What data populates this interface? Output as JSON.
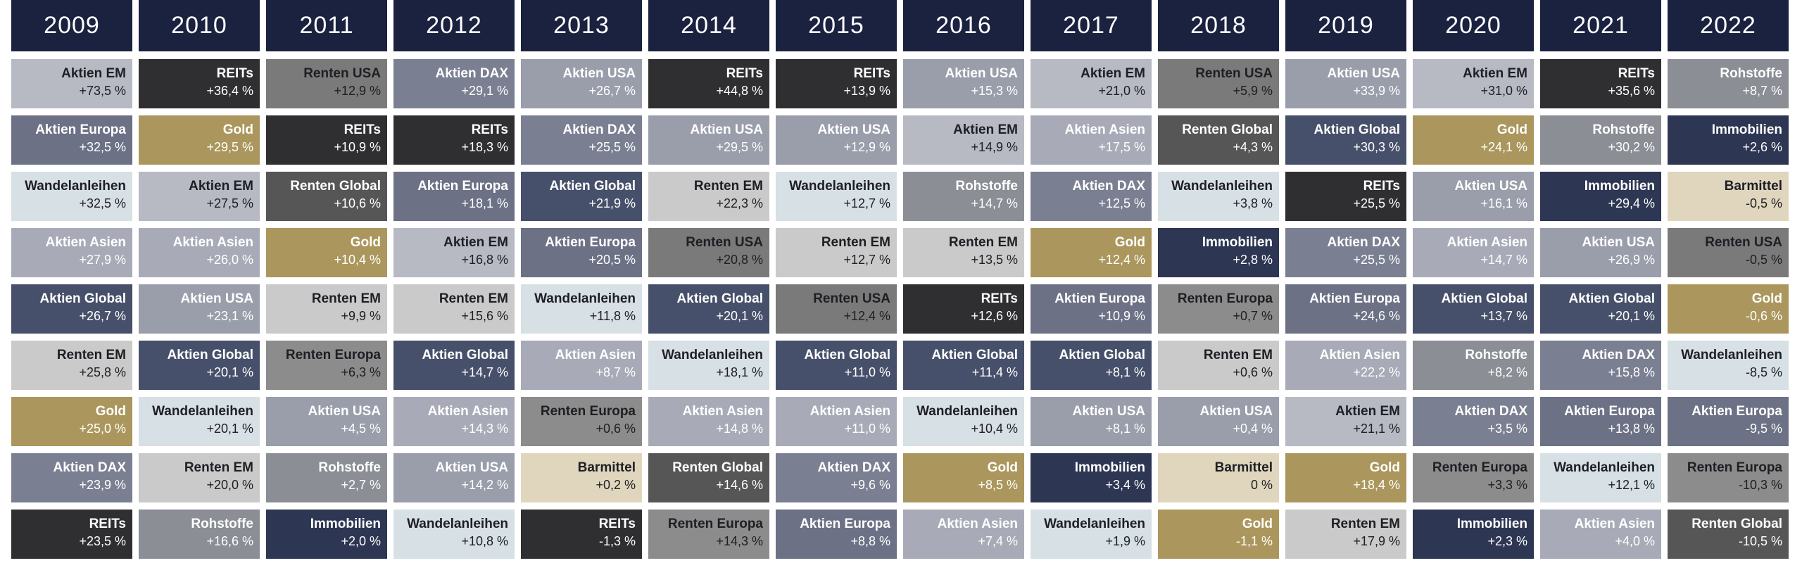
{
  "chart_data": {
    "type": "table",
    "years": [
      "2009",
      "2010",
      "2011",
      "2012",
      "2013",
      "2014",
      "2015",
      "2016",
      "2017",
      "2018",
      "2019",
      "2020",
      "2021",
      "2022"
    ],
    "asset_colors": {
      "Aktien EM": {
        "bg": "#b7b9c3",
        "fg": "#1e1e24"
      },
      "Aktien Europa": {
        "bg": "#6c7185",
        "fg": "#ffffff"
      },
      "Aktien USA": {
        "bg": "#9a9eab",
        "fg": "#ffffff"
      },
      "Aktien DAX": {
        "bg": "#7b7f92",
        "fg": "#ffffff"
      },
      "Aktien Asien": {
        "bg": "#a8abb7",
        "fg": "#ffffff"
      },
      "Aktien Global": {
        "bg": "#47506a",
        "fg": "#ffffff"
      },
      "Wandelanleihen": {
        "bg": "#d7e0e4",
        "fg": "#1e1e24"
      },
      "Renten EM": {
        "bg": "#cacaca",
        "fg": "#1e1e24"
      },
      "Renten USA": {
        "bg": "#7a7a7a",
        "fg": "#1e1e24"
      },
      "Renten Global": {
        "bg": "#565656",
        "fg": "#ffffff"
      },
      "Renten Europa": {
        "bg": "#8c8c8c",
        "fg": "#1e1e24"
      },
      "REITs": {
        "bg": "#2f2f31",
        "fg": "#ffffff"
      },
      "Gold": {
        "bg": "#ab975d",
        "fg": "#ffffff"
      },
      "Rohstoffe": {
        "bg": "#8b8e95",
        "fg": "#ffffff"
      },
      "Immobilien": {
        "bg": "#2d3652",
        "fg": "#ffffff"
      },
      "Barmittel": {
        "bg": "#e0d6be",
        "fg": "#1e1e24"
      }
    },
    "columns": [
      [
        [
          "Aktien EM",
          "+73,5 %"
        ],
        [
          "Aktien Europa",
          "+32,5 %"
        ],
        [
          "Wandelanleihen",
          "+32,5 %"
        ],
        [
          "Aktien Asien",
          "+27,9 %"
        ],
        [
          "Aktien Global",
          "+26,7 %"
        ],
        [
          "Renten EM",
          "+25,8 %"
        ],
        [
          "Gold",
          "+25,0 %"
        ],
        [
          "Aktien DAX",
          "+23,9 %"
        ],
        [
          "REITs",
          "+23,5 %"
        ]
      ],
      [
        [
          "REITs",
          "+36,4 %"
        ],
        [
          "Gold",
          "+29,5 %"
        ],
        [
          "Aktien EM",
          "+27,5 %"
        ],
        [
          "Aktien Asien",
          "+26,0 %"
        ],
        [
          "Aktien USA",
          "+23,1 %"
        ],
        [
          "Aktien Global",
          "+20,1 %"
        ],
        [
          "Wandelanleihen",
          "+20,1 %"
        ],
        [
          "Renten EM",
          "+20,0 %"
        ],
        [
          "Rohstoffe",
          "+16,6 %"
        ]
      ],
      [
        [
          "Renten USA",
          "+12,9 %"
        ],
        [
          "REITs",
          "+10,9 %"
        ],
        [
          "Renten Global",
          "+10,6 %"
        ],
        [
          "Gold",
          "+10,4 %"
        ],
        [
          "Renten EM",
          "+9,9 %"
        ],
        [
          "Renten Europa",
          "+6,3 %"
        ],
        [
          "Aktien USA",
          "+4,5 %"
        ],
        [
          "Rohstoffe",
          "+2,7 %"
        ],
        [
          "Immobilien",
          "+2,0 %"
        ]
      ],
      [
        [
          "Aktien DAX",
          "+29,1 %"
        ],
        [
          "REITs",
          "+18,3 %"
        ],
        [
          "Aktien Europa",
          "+18,1 %"
        ],
        [
          "Aktien EM",
          "+16,8 %"
        ],
        [
          "Renten EM",
          "+15,6 %"
        ],
        [
          "Aktien Global",
          "+14,7 %"
        ],
        [
          "Aktien Asien",
          "+14,3 %"
        ],
        [
          "Aktien USA",
          "+14,2 %"
        ],
        [
          "Wandelanleihen",
          "+10,8 %"
        ]
      ],
      [
        [
          "Aktien USA",
          "+26,7 %"
        ],
        [
          "Aktien DAX",
          "+25,5 %"
        ],
        [
          "Aktien Global",
          "+21,9 %"
        ],
        [
          "Aktien Europa",
          "+20,5 %"
        ],
        [
          "Wandelanleihen",
          "+11,8 %"
        ],
        [
          "Aktien Asien",
          "+8,7 %"
        ],
        [
          "Renten Europa",
          "+0,6 %"
        ],
        [
          "Barmittel",
          "+0,2 %"
        ],
        [
          "REITs",
          "-1,3 %"
        ]
      ],
      [
        [
          "REITs",
          "+44,8 %"
        ],
        [
          "Aktien USA",
          "+29,5 %"
        ],
        [
          "Renten EM",
          "+22,3 %"
        ],
        [
          "Renten USA",
          "+20,8 %"
        ],
        [
          "Aktien Global",
          "+20,1 %"
        ],
        [
          "Wandelanleihen",
          "+18,1 %"
        ],
        [
          "Aktien Asien",
          "+14,8 %"
        ],
        [
          "Renten Global",
          "+14,6 %"
        ],
        [
          "Renten Europa",
          "+14,3 %"
        ]
      ],
      [
        [
          "REITs",
          "+13,9 %"
        ],
        [
          "Aktien USA",
          "+12,9 %"
        ],
        [
          "Wandelanleihen",
          "+12,7 %"
        ],
        [
          "Renten EM",
          "+12,7 %"
        ],
        [
          "Renten USA",
          "+12,4 %"
        ],
        [
          "Aktien Global",
          "+11,0 %"
        ],
        [
          "Aktien Asien",
          "+11,0 %"
        ],
        [
          "Aktien DAX",
          "+9,6 %"
        ],
        [
          "Aktien Europa",
          "+8,8 %"
        ]
      ],
      [
        [
          "Aktien USA",
          "+15,3 %"
        ],
        [
          "Aktien EM",
          "+14,9 %"
        ],
        [
          "Rohstoffe",
          "+14,7 %"
        ],
        [
          "Renten EM",
          "+13,5 %"
        ],
        [
          "REITs",
          "+12,6 %"
        ],
        [
          "Aktien Global",
          "+11,4 %"
        ],
        [
          "Wandelanleihen",
          "+10,4 %"
        ],
        [
          "Gold",
          "+8,5 %"
        ],
        [
          "Aktien Asien",
          "+7,4 %"
        ]
      ],
      [
        [
          "Aktien EM",
          "+21,0 %"
        ],
        [
          "Aktien Asien",
          "+17,5 %"
        ],
        [
          "Aktien DAX",
          "+12,5 %"
        ],
        [
          "Gold",
          "+12,4 %"
        ],
        [
          "Aktien Europa",
          "+10,9 %"
        ],
        [
          "Aktien Global",
          "+8,1 %"
        ],
        [
          "Aktien USA",
          "+8,1 %"
        ],
        [
          "Immobilien",
          "+3,4 %"
        ],
        [
          "Wandelanleihen",
          "+1,9 %"
        ]
      ],
      [
        [
          "Renten USA",
          "+5,9 %"
        ],
        [
          "Renten Global",
          "+4,3 %"
        ],
        [
          "Wandelanleihen",
          "+3,8 %"
        ],
        [
          "Immobilien",
          "+2,8 %"
        ],
        [
          "Renten Europa",
          "+0,7 %"
        ],
        [
          "Renten EM",
          "+0,6 %"
        ],
        [
          "Aktien USA",
          "+0,4 %"
        ],
        [
          "Barmittel",
          "0 %"
        ],
        [
          "Gold",
          "-1,1 %"
        ]
      ],
      [
        [
          "Aktien USA",
          "+33,9 %"
        ],
        [
          "Aktien Global",
          "+30,3 %"
        ],
        [
          "REITs",
          "+25,5 %"
        ],
        [
          "Aktien DAX",
          "+25,5 %"
        ],
        [
          "Aktien Europa",
          "+24,6 %"
        ],
        [
          "Aktien Asien",
          "+22,2 %"
        ],
        [
          "Aktien EM",
          "+21,1 %"
        ],
        [
          "Gold",
          "+18,4 %"
        ],
        [
          "Renten EM",
          "+17,9 %"
        ]
      ],
      [
        [
          "Aktien EM",
          "+31,0 %"
        ],
        [
          "Gold",
          "+24,1 %"
        ],
        [
          "Aktien USA",
          "+16,1 %"
        ],
        [
          "Aktien Asien",
          "+14,7 %"
        ],
        [
          "Aktien Global",
          "+13,7 %"
        ],
        [
          "Rohstoffe",
          "+8,2 %"
        ],
        [
          "Aktien DAX",
          "+3,5 %"
        ],
        [
          "Renten Europa",
          "+3,3 %"
        ],
        [
          "Immobilien",
          "+2,3 %"
        ]
      ],
      [
        [
          "REITs",
          "+35,6 %"
        ],
        [
          "Rohstoffe",
          "+30,2 %"
        ],
        [
          "Immobilien",
          "+29,4 %"
        ],
        [
          "Aktien USA",
          "+26,9 %"
        ],
        [
          "Aktien Global",
          "+20,1 %"
        ],
        [
          "Aktien DAX",
          "+15,8 %"
        ],
        [
          "Aktien Europa",
          "+13,8 %"
        ],
        [
          "Wandelanleihen",
          "+12,1 %"
        ],
        [
          "Aktien Asien",
          "+4,0 %"
        ]
      ],
      [
        [
          "Rohstoffe",
          "+8,7 %"
        ],
        [
          "Immobilien",
          "+2,6 %"
        ],
        [
          "Barmittel",
          "-0,5 %"
        ],
        [
          "Renten USA",
          "-0,5 %"
        ],
        [
          "Gold",
          "-0,6 %"
        ],
        [
          "Wandelanleihen",
          "-8,5 %"
        ],
        [
          "Aktien Europa",
          "-9,5 %"
        ],
        [
          "Renten Europa",
          "-10,3 %"
        ],
        [
          "Renten Global",
          "-10,5 %"
        ]
      ]
    ]
  }
}
